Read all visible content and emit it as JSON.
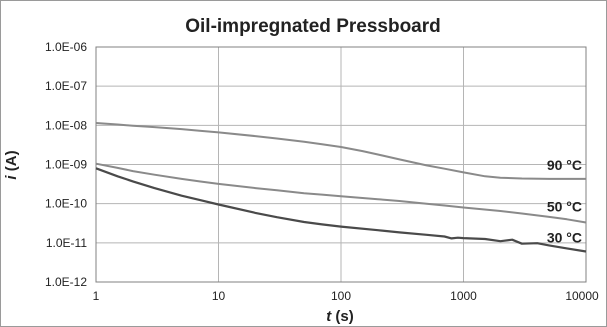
{
  "chart_data": {
    "type": "line",
    "title": "Oil-impregnated Pressboard",
    "xlabel_var": "t",
    "xlabel_unit": " (s)",
    "ylabel_var": "i",
    "ylabel_unit": " (A)",
    "x_scale": "log",
    "y_scale": "log",
    "xlim": [
      1,
      10000
    ],
    "ylim": [
      1e-12,
      1e-06
    ],
    "grid": true,
    "x_ticks": [
      {
        "value": 1,
        "label": "1"
      },
      {
        "value": 10,
        "label": "10"
      },
      {
        "value": 100,
        "label": "100"
      },
      {
        "value": 1000,
        "label": "1000"
      },
      {
        "value": 10000,
        "label": "10000"
      }
    ],
    "y_ticks": [
      {
        "value": 1e-06,
        "label": "1.0E-06"
      },
      {
        "value": 1e-07,
        "label": "1.0E-07"
      },
      {
        "value": 1e-08,
        "label": "1.0E-08"
      },
      {
        "value": 1e-09,
        "label": "1.0E-09"
      },
      {
        "value": 1e-10,
        "label": "1.0E-10"
      },
      {
        "value": 1e-11,
        "label": "1.0E-11"
      },
      {
        "value": 1e-12,
        "label": "1.0E-12"
      }
    ],
    "series": [
      {
        "name": "90 °C",
        "color": "#8a8a8a",
        "x": [
          1,
          1.5,
          2,
          3,
          5,
          7,
          10,
          20,
          30,
          50,
          70,
          100,
          150,
          200,
          300,
          500,
          700,
          1000,
          1500,
          2000,
          3000,
          5000,
          7000,
          10000
        ],
        "y": [
          1.15e-08,
          1.05e-08,
          9.8e-09,
          9e-09,
          8e-09,
          7.3e-09,
          6.6e-09,
          5.3e-09,
          4.6e-09,
          3.8e-09,
          3.3e-09,
          2.8e-09,
          2.2e-09,
          1.8e-09,
          1.35e-09,
          9.5e-10,
          7.8e-10,
          6.3e-10,
          5e-10,
          4.6e-10,
          4.4e-10,
          4.3e-10,
          4.3e-10,
          4.3e-10
        ]
      },
      {
        "name": "50 °C",
        "color": "#8a8a8a",
        "x": [
          1,
          1.5,
          2,
          3,
          5,
          7,
          10,
          20,
          30,
          50,
          70,
          100,
          200,
          300,
          500,
          700,
          1000,
          2000,
          3000,
          5000,
          7000,
          10000
        ],
        "y": [
          1.05e-09,
          8.2e-10,
          6.8e-10,
          5.5e-10,
          4.3e-10,
          3.7e-10,
          3.2e-10,
          2.5e-10,
          2.2e-10,
          1.85e-10,
          1.7e-10,
          1.55e-10,
          1.3e-10,
          1.17e-10,
          1e-10,
          9e-11,
          8e-11,
          6.5e-11,
          5.6e-11,
          4.6e-11,
          4e-11,
          3.3e-11
        ]
      },
      {
        "name": "30 °C",
        "color": "#4a4a4a",
        "x": [
          1,
          1.5,
          2,
          3,
          5,
          7,
          10,
          20,
          30,
          50,
          70,
          100,
          200,
          300,
          500,
          700,
          800,
          900,
          1000,
          1500,
          2000,
          2500,
          3000,
          4000,
          5000,
          7000,
          10000
        ],
        "y": [
          8e-10,
          5e-10,
          3.7e-10,
          2.5e-10,
          1.6e-10,
          1.25e-10,
          9.5e-11,
          5.8e-11,
          4.5e-11,
          3.4e-11,
          2.95e-11,
          2.6e-11,
          2.1e-11,
          1.85e-11,
          1.6e-11,
          1.45e-11,
          1.3e-11,
          1.35e-11,
          1.32e-11,
          1.25e-11,
          1.1e-11,
          1.2e-11,
          9.5e-12,
          9.8e-12,
          8.6e-12,
          7.2e-12,
          6e-12
        ]
      }
    ]
  }
}
